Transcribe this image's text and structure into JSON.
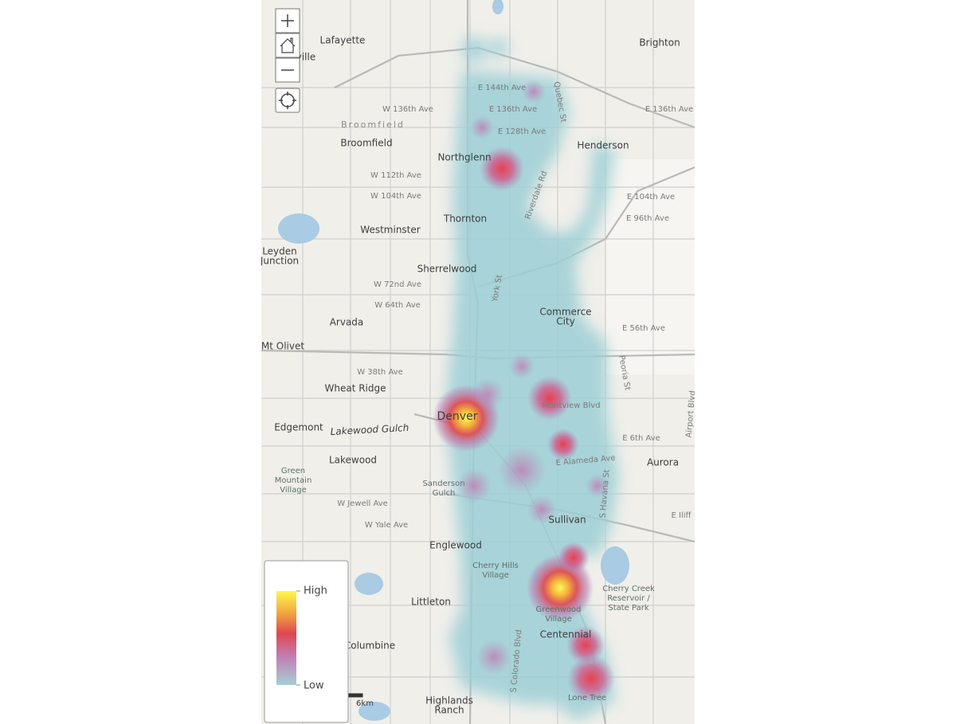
{
  "map_labels": [
    [
      "Lafayette"
    ],
    [
      "Brighton"
    ],
    [
      "ville"
    ],
    [
      "E 144th Ave"
    ],
    [
      "W 136th Ave"
    ],
    [
      "E 136th Ave"
    ],
    [
      "E 136th Ave"
    ],
    [
      "Broomfield"
    ],
    [
      "Broomfield"
    ],
    [
      "E 128th Ave"
    ],
    [
      "Henderson"
    ],
    [
      "Northglenn"
    ],
    [
      "W 112th Ave"
    ],
    [
      "W 104th Ave"
    ],
    [
      "E 104th Ave"
    ],
    [
      "Riverdale Rd"
    ],
    [
      "Thornton"
    ],
    [
      "E 96th Ave"
    ],
    [
      "Westminster"
    ],
    [
      "Leyden",
      "Junction"
    ],
    [
      "Sherrelwood"
    ],
    [
      "W 72nd Ave"
    ],
    [
      "W 64th Ave"
    ],
    [
      "Commerce",
      "City"
    ],
    [
      "Arvada"
    ],
    [
      "E 56th Ave"
    ],
    [
      "Mt Olivet"
    ],
    [
      "W 38th Ave"
    ],
    [
      "Wheat Ridge"
    ],
    [
      "Montview Blvd"
    ],
    [
      "Denver"
    ],
    [
      "Edgemont"
    ],
    [
      "Lakewood Gulch"
    ],
    [
      "E 6th Ave"
    ],
    [
      "Lakewood"
    ],
    [
      "Aurora"
    ],
    [
      "E Alameda Ave"
    ],
    [
      "Green",
      "Mountain",
      "Village"
    ],
    [
      "Sanderson",
      "Gulch"
    ],
    [
      "W Jewell Ave"
    ],
    [
      "Sullivan"
    ],
    [
      "W Yale Ave"
    ],
    [
      "E Iliff"
    ],
    [
      "Englewood"
    ],
    [
      "Cherry Hills",
      "Village"
    ],
    [
      "Cherry Creek",
      "Reservoir /",
      "State Park"
    ],
    [
      "Littleton"
    ],
    [
      "Greenwood",
      "Village"
    ],
    [
      "Centennial"
    ],
    [
      "Columbine"
    ],
    [
      "Highlands",
      "Ranch"
    ],
    [
      "Lone Tree"
    ],
    [
      "York St"
    ],
    [
      "Quebec St"
    ],
    [
      "Peoria St"
    ],
    [
      "Airport Blvd"
    ],
    [
      "S Colorado Blvd"
    ],
    [
      "S Havana St"
    ]
  ],
  "legend": {
    "high": "High",
    "low": "Low"
  },
  "scale": "6km"
}
